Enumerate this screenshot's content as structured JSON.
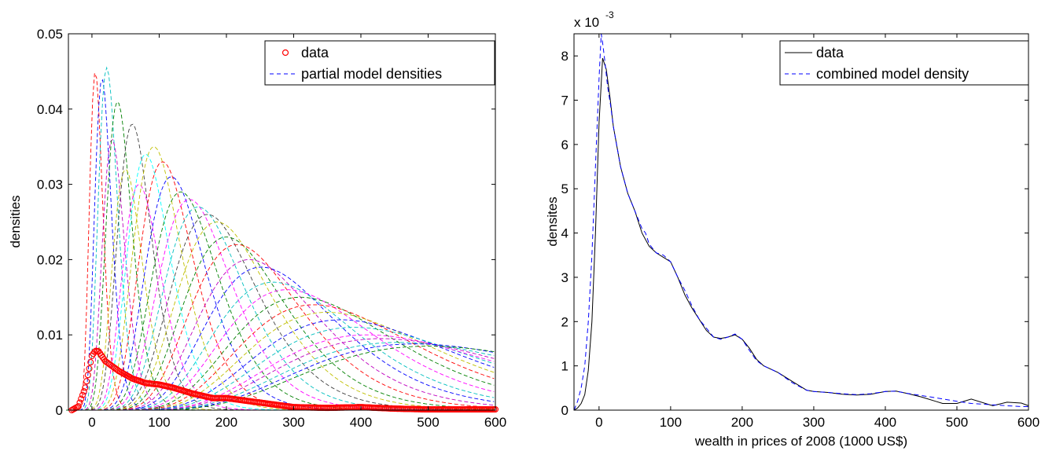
{
  "chart_data": [
    {
      "type": "line",
      "title": "",
      "xlabel": "",
      "ylabel": "densities",
      "xlim": [
        -35,
        600
      ],
      "ylim": [
        0,
        0.05
      ],
      "xticks": [
        0,
        100,
        200,
        300,
        400,
        500,
        600
      ],
      "xtick_labels": [
        "0",
        "100",
        "200",
        "300",
        "400",
        "500",
        "600"
      ],
      "yticks": [
        0,
        0.01,
        0.02,
        0.03,
        0.04,
        0.05
      ],
      "ytick_labels": [
        "0",
        "0.01",
        "0.02",
        "0.03",
        "0.04",
        "0.05"
      ],
      "grid": false,
      "legend": {
        "placement": "top-right",
        "entries": [
          "data",
          "partial model densities"
        ]
      },
      "series": [
        {
          "name": "data",
          "style": "markers",
          "color": "#ff0000",
          "x": [
            -30,
            -20,
            -10,
            0,
            5,
            10,
            20,
            40,
            60,
            80,
            100,
            120,
            150,
            180,
            200,
            250,
            300,
            350,
            400,
            450,
            500,
            550,
            600
          ],
          "y": [
            0,
            0.0005,
            0.003,
            0.0072,
            0.0079,
            0.0078,
            0.0065,
            0.0052,
            0.0042,
            0.0036,
            0.0034,
            0.003,
            0.0022,
            0.0016,
            0.0016,
            0.001,
            0.0004,
            0.0003,
            0.0004,
            0.0002,
            0.0001,
            0.0001,
            0.0001
          ]
        },
        {
          "name": "partial model densities",
          "style": "dashed",
          "color": "#0000ff",
          "components": [
            {
              "color": "#ff0000",
              "peak_x": 5,
              "peak_y": 0.045
            },
            {
              "color": "#0000ff",
              "peak_x": 15,
              "peak_y": 0.044
            },
            {
              "color": "#00bfbf",
              "peak_x": 22,
              "peak_y": 0.0455
            },
            {
              "color": "#bf00bf",
              "peak_x": 30,
              "peak_y": 0.036
            },
            {
              "color": "#008000",
              "peak_x": 38,
              "peak_y": 0.041
            },
            {
              "color": "#bfbf00",
              "peak_x": 50,
              "peak_y": 0.032
            },
            {
              "color": "#404040",
              "peak_x": 60,
              "peak_y": 0.038
            },
            {
              "color": "#ff00ff",
              "peak_x": 70,
              "peak_y": 0.03
            },
            {
              "color": "#00ffff",
              "peak_x": 80,
              "peak_y": 0.034
            },
            {
              "color": "#bfbf00",
              "peak_x": 92,
              "peak_y": 0.035
            },
            {
              "color": "#ff0000",
              "peak_x": 105,
              "peak_y": 0.033
            },
            {
              "color": "#0000ff",
              "peak_x": 118,
              "peak_y": 0.031
            },
            {
              "color": "#008000",
              "peak_x": 132,
              "peak_y": 0.029
            },
            {
              "color": "#ff00ff",
              "peak_x": 145,
              "peak_y": 0.028
            },
            {
              "color": "#00bfbf",
              "peak_x": 158,
              "peak_y": 0.027
            },
            {
              "color": "#404040",
              "peak_x": 172,
              "peak_y": 0.026
            },
            {
              "color": "#bfbf00",
              "peak_x": 186,
              "peak_y": 0.025
            },
            {
              "color": "#008000",
              "peak_x": 200,
              "peak_y": 0.023
            },
            {
              "color": "#ff0000",
              "peak_x": 216,
              "peak_y": 0.022
            },
            {
              "color": "#bf00bf",
              "peak_x": 234,
              "peak_y": 0.02
            },
            {
              "color": "#0000ff",
              "peak_x": 252,
              "peak_y": 0.019
            },
            {
              "color": "#00bfbf",
              "peak_x": 270,
              "peak_y": 0.017
            },
            {
              "color": "#ff00ff",
              "peak_x": 290,
              "peak_y": 0.016
            },
            {
              "color": "#008000",
              "peak_x": 310,
              "peak_y": 0.015
            },
            {
              "color": "#ff0000",
              "peak_x": 330,
              "peak_y": 0.014
            },
            {
              "color": "#bfbf00",
              "peak_x": 350,
              "peak_y": 0.013
            },
            {
              "color": "#0000ff",
              "peak_x": 370,
              "peak_y": 0.012
            },
            {
              "color": "#00bfbf",
              "peak_x": 390,
              "peak_y": 0.011
            },
            {
              "color": "#ff00ff",
              "peak_x": 410,
              "peak_y": 0.01
            },
            {
              "color": "#bf00bf",
              "peak_x": 430,
              "peak_y": 0.0095
            },
            {
              "color": "#00bfbf",
              "peak_x": 455,
              "peak_y": 0.009
            },
            {
              "color": "#0000ff",
              "peak_x": 480,
              "peak_y": 0.0088
            },
            {
              "color": "#008000",
              "peak_x": 500,
              "peak_y": 0.0085
            }
          ]
        }
      ]
    },
    {
      "type": "line",
      "title": "",
      "xlabel": "wealth in prices of 2008 (1000 US$)",
      "ylabel": "densites",
      "y_multiplier_label": {
        "base": "x 10",
        "exponent": "-3"
      },
      "xlim": [
        -35,
        600
      ],
      "ylim": [
        0,
        8.5
      ],
      "xticks": [
        0,
        100,
        200,
        300,
        400,
        500,
        600
      ],
      "xtick_labels": [
        "0",
        "100",
        "200",
        "300",
        "400",
        "500",
        "600"
      ],
      "yticks": [
        0,
        1,
        2,
        3,
        4,
        5,
        6,
        7,
        8
      ],
      "ytick_labels": [
        "0",
        "1",
        "2",
        "3",
        "4",
        "5",
        "6",
        "7",
        "8"
      ],
      "grid": false,
      "legend": {
        "placement": "top-right",
        "entries": [
          "data",
          "combined model density"
        ]
      },
      "series": [
        {
          "name": "data",
          "style": "solid",
          "color": "#000000",
          "x": [
            -35,
            -30,
            -25,
            -20,
            -15,
            -10,
            -5,
            0,
            5,
            10,
            15,
            20,
            30,
            40,
            50,
            60,
            70,
            80,
            90,
            100,
            110,
            120,
            130,
            140,
            150,
            160,
            170,
            180,
            190,
            200,
            210,
            220,
            230,
            250,
            270,
            290,
            300,
            320,
            340,
            360,
            380,
            400,
            415,
            430,
            450,
            470,
            480,
            500,
            520,
            550,
            570,
            590,
            600
          ],
          "y": [
            0,
            0.05,
            0.15,
            0.35,
            0.9,
            2.0,
            4.0,
            6.5,
            7.95,
            7.7,
            7.1,
            6.4,
            5.5,
            4.9,
            4.5,
            4.0,
            3.7,
            3.55,
            3.45,
            3.35,
            3.0,
            2.6,
            2.3,
            2.05,
            1.8,
            1.65,
            1.62,
            1.65,
            1.7,
            1.6,
            1.4,
            1.15,
            1.0,
            0.85,
            0.65,
            0.45,
            0.42,
            0.4,
            0.36,
            0.34,
            0.36,
            0.42,
            0.43,
            0.38,
            0.3,
            0.2,
            0.15,
            0.15,
            0.25,
            0.1,
            0.18,
            0.16,
            0.1
          ]
        },
        {
          "name": "combined model density",
          "style": "dashed",
          "color": "#0000ff",
          "x": [
            -35,
            -30,
            -25,
            -20,
            -15,
            -10,
            -5,
            0,
            3,
            5,
            8,
            12,
            16,
            20,
            30,
            40,
            50,
            60,
            65,
            70,
            80,
            90,
            100,
            110,
            120,
            130,
            140,
            150,
            160,
            170,
            180,
            190,
            200,
            210,
            220,
            230,
            250,
            270,
            290,
            300,
            320,
            340,
            360,
            380,
            400,
            415,
            430,
            450,
            470,
            500,
            520,
            550,
            570,
            590,
            600
          ],
          "y": [
            0,
            0.2,
            0.5,
            1.0,
            2.0,
            3.5,
            5.5,
            7.5,
            8.5,
            8.3,
            7.9,
            7.3,
            6.9,
            6.4,
            5.5,
            4.9,
            4.5,
            4.1,
            4.0,
            3.75,
            3.55,
            3.5,
            3.35,
            3.0,
            2.7,
            2.35,
            2.05,
            1.85,
            1.65,
            1.6,
            1.65,
            1.72,
            1.6,
            1.35,
            1.12,
            1.0,
            0.85,
            0.62,
            0.45,
            0.42,
            0.4,
            0.37,
            0.35,
            0.37,
            0.42,
            0.43,
            0.38,
            0.33,
            0.28,
            0.2,
            0.15,
            0.12,
            0.1,
            0.08,
            0.08
          ]
        }
      ]
    }
  ]
}
